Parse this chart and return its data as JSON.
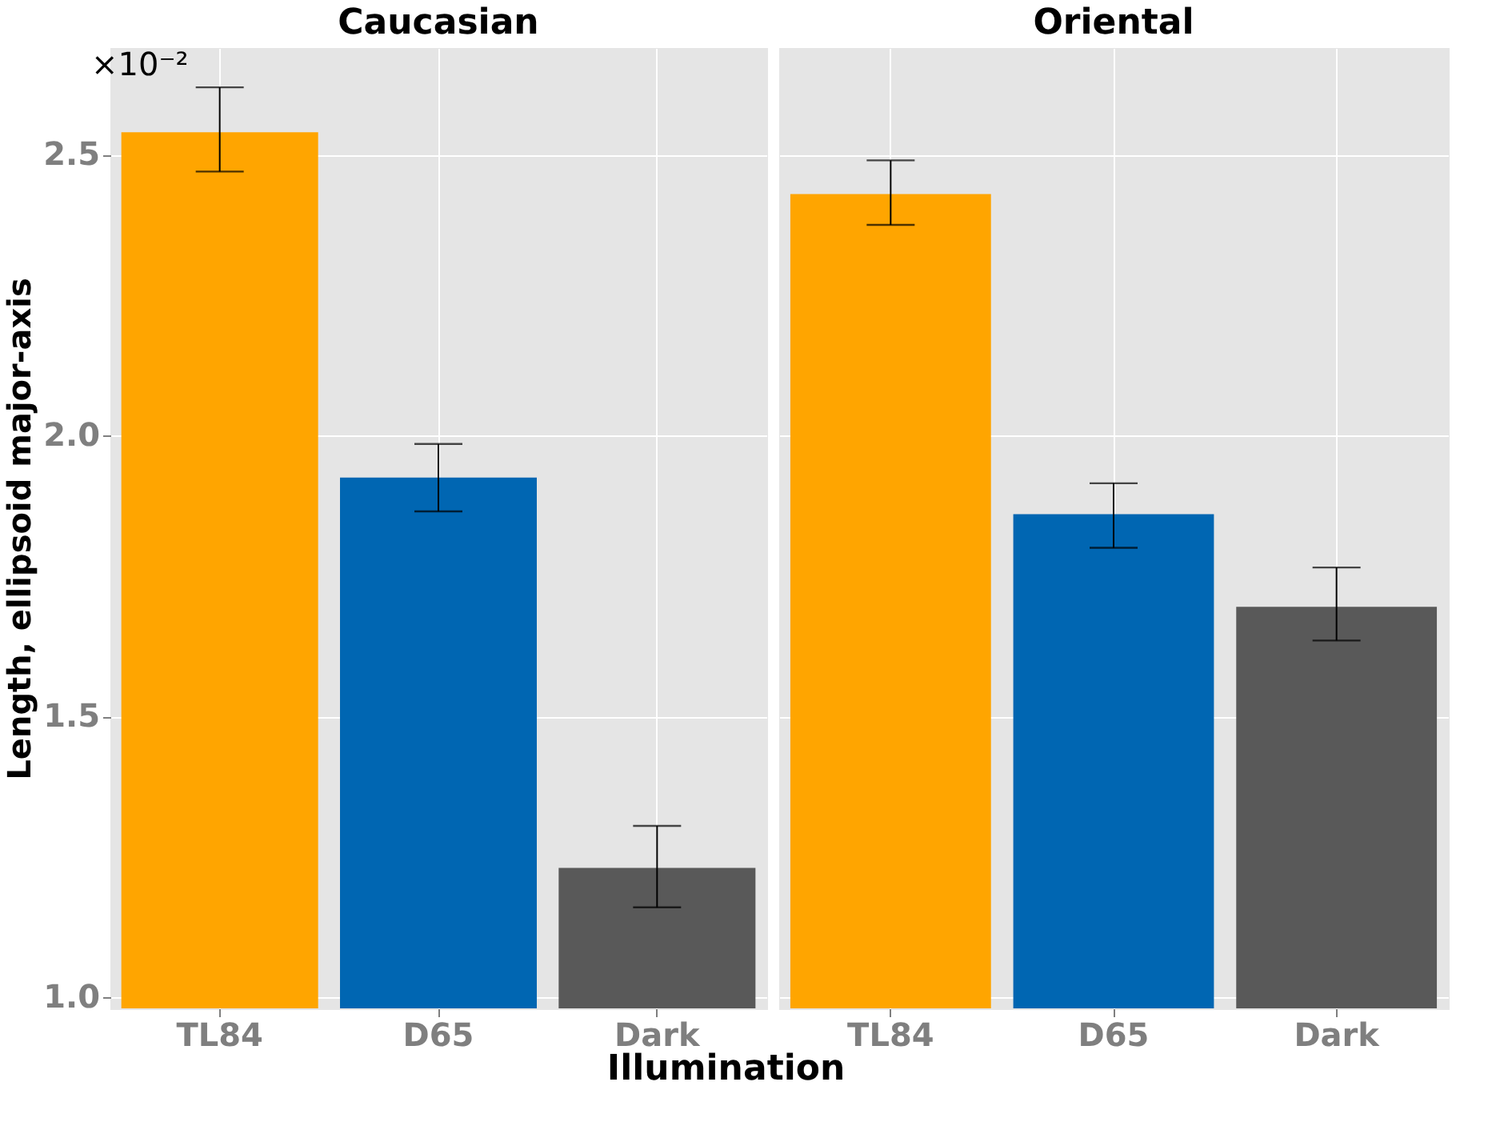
{
  "chart_data": [
    {
      "type": "bar",
      "title": "Caucasian",
      "xlabel": "Illumination",
      "ylabel": "Length, ellipsoid major-axis",
      "categories": [
        "TL84",
        "D65",
        "Dark"
      ],
      "values": [
        2.54,
        1.925,
        1.23
      ],
      "colors": [
        "#ffa500",
        "#0066b2",
        "#595959"
      ],
      "errors": [
        [
          2.47,
          2.62
        ],
        [
          1.865,
          1.985
        ],
        [
          1.16,
          1.305
        ]
      ],
      "ylim": [
        0.98,
        2.69
      ],
      "yticks": [
        {
          "value": 1,
          "label": "1.0"
        },
        1.5,
        {
          "value": 2,
          "label": "2.0"
        },
        2.5
      ],
      "grid": true,
      "annotations": [
        "×10⁻²"
      ]
    },
    {
      "type": "bar",
      "title": "Oriental",
      "categories": [
        "TL84",
        "D65",
        "Dark"
      ],
      "values": [
        2.43,
        1.86,
        1.695
      ],
      "colors": [
        "#ffa500",
        "#0066b2",
        "#595959"
      ],
      "errors": [
        [
          2.375,
          2.49
        ],
        [
          1.8,
          1.915
        ],
        [
          1.635,
          1.765
        ]
      ],
      "ylim": [
        0.98,
        2.69
      ],
      "yticks": [
        1,
        1.5,
        2,
        2.5
      ],
      "grid": true,
      "tick_labels": "x"
    }
  ]
}
